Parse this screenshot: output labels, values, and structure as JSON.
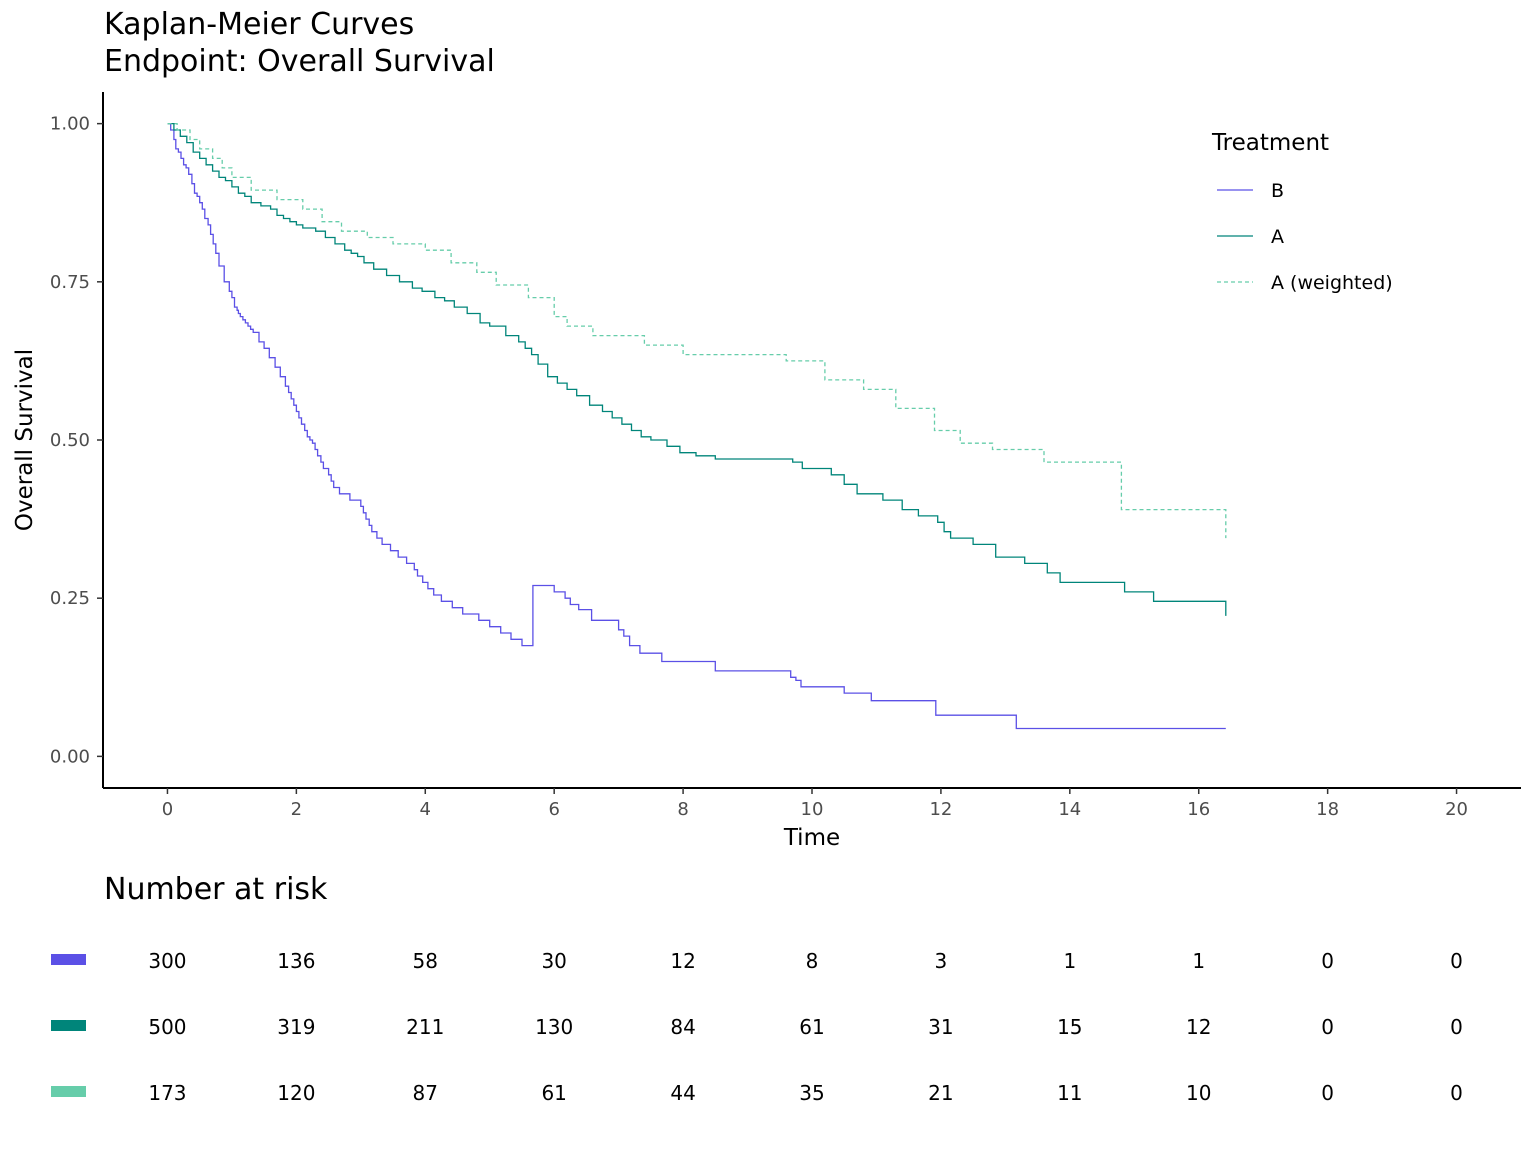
{
  "chart_data": {
    "type": "line",
    "title_lines": [
      "Kaplan-Meier Curves",
      "Endpoint: Overall Survival"
    ],
    "xlabel": "Time",
    "ylabel": "Overall Survival",
    "xlim": [
      -1,
      21
    ],
    "ylim": [
      -0.05,
      1.05
    ],
    "x_ticks": [
      0,
      2,
      4,
      6,
      8,
      10,
      12,
      14,
      16,
      18,
      20
    ],
    "x_tick_labels": [
      "0",
      "2",
      "4",
      "6",
      "8",
      "10",
      "12",
      "14",
      "16",
      "18",
      "20"
    ],
    "y_ticks": [
      0,
      0.25,
      0.5,
      0.75,
      1.0
    ],
    "y_tick_labels": [
      "0.00",
      "0.25",
      "0.50",
      "0.75",
      "1.00"
    ],
    "grid": false,
    "legend": {
      "title": "Treatment",
      "placement": "top-right",
      "entries": [
        "B",
        "A",
        "A (weighted)"
      ]
    },
    "series": [
      {
        "name": "B",
        "color": "#5b50e6",
        "dash": "solid",
        "x": [
          0,
          0.05,
          0.1,
          0.13,
          0.17,
          0.21,
          0.25,
          0.29,
          0.33,
          0.38,
          0.42,
          0.46,
          0.5,
          0.54,
          0.58,
          0.63,
          0.67,
          0.71,
          0.75,
          0.8,
          0.88,
          0.96,
          1.0,
          1.04,
          1.08,
          1.1,
          1.13,
          1.17,
          1.21,
          1.25,
          1.29,
          1.33,
          1.42,
          1.5,
          1.58,
          1.67,
          1.75,
          1.83,
          1.88,
          1.92,
          1.96,
          2.0,
          2.04,
          2.08,
          2.13,
          2.17,
          2.21,
          2.25,
          2.29,
          2.33,
          2.38,
          2.42,
          2.5,
          2.54,
          2.58,
          2.67,
          2.83,
          3.0,
          3.04,
          3.08,
          3.13,
          3.17,
          3.25,
          3.33,
          3.46,
          3.58,
          3.71,
          3.83,
          3.88,
          3.96,
          4.04,
          4.13,
          4.25,
          4.42,
          4.58,
          4.83,
          5.0,
          5.17,
          5.33,
          5.5,
          5.67,
          6.0,
          6.17,
          6.25,
          6.38,
          6.58,
          7.0,
          7.08,
          7.17,
          7.33,
          7.67,
          8.5,
          9.67,
          9.75,
          9.83,
          10.5,
          10.92,
          11.92,
          13.17,
          16.42
        ],
        "y": [
          1.0,
          0.99,
          0.975,
          0.96,
          0.955,
          0.945,
          0.935,
          0.93,
          0.92,
          0.905,
          0.89,
          0.885,
          0.875,
          0.865,
          0.85,
          0.84,
          0.825,
          0.81,
          0.795,
          0.775,
          0.75,
          0.735,
          0.725,
          0.71,
          0.705,
          0.7,
          0.695,
          0.69,
          0.685,
          0.68,
          0.675,
          0.67,
          0.655,
          0.645,
          0.63,
          0.615,
          0.6,
          0.585,
          0.575,
          0.565,
          0.555,
          0.545,
          0.535,
          0.525,
          0.515,
          0.505,
          0.5,
          0.495,
          0.485,
          0.475,
          0.465,
          0.455,
          0.445,
          0.435,
          0.425,
          0.415,
          0.405,
          0.395,
          0.385,
          0.375,
          0.365,
          0.355,
          0.345,
          0.335,
          0.325,
          0.315,
          0.305,
          0.295,
          0.285,
          0.275,
          0.265,
          0.255,
          0.245,
          0.235,
          0.225,
          0.215,
          0.205,
          0.195,
          0.185,
          0.175,
          0.27,
          0.26,
          0.25,
          0.24,
          0.232,
          0.215,
          0.2,
          0.19,
          0.175,
          0.163,
          0.15,
          0.135,
          0.125,
          0.12,
          0.11,
          0.1,
          0.088,
          0.065,
          0.044,
          0.044
        ]
      },
      {
        "name": "A",
        "color": "#00857a",
        "dash": "solid",
        "x": [
          0,
          0.1,
          0.2,
          0.3,
          0.4,
          0.5,
          0.6,
          0.7,
          0.8,
          0.9,
          1.0,
          1.1,
          1.2,
          1.3,
          1.45,
          1.6,
          1.7,
          1.8,
          1.9,
          2.0,
          2.1,
          2.3,
          2.45,
          2.6,
          2.75,
          2.85,
          2.95,
          3.05,
          3.2,
          3.4,
          3.6,
          3.8,
          3.95,
          4.15,
          4.3,
          4.45,
          4.65,
          4.85,
          5.0,
          5.25,
          5.45,
          5.55,
          5.65,
          5.75,
          5.9,
          6.05,
          6.2,
          6.35,
          6.55,
          6.75,
          6.9,
          7.05,
          7.2,
          7.35,
          7.5,
          7.75,
          7.95,
          8.2,
          8.5,
          9.7,
          9.85,
          10.3,
          10.5,
          10.7,
          11.1,
          11.4,
          11.65,
          11.95,
          12.05,
          12.15,
          12.5,
          12.85,
          13.3,
          13.65,
          13.85,
          14.85,
          15.3,
          16.42
        ],
        "y": [
          1.0,
          0.99,
          0.98,
          0.97,
          0.955,
          0.945,
          0.935,
          0.925,
          0.915,
          0.91,
          0.9,
          0.89,
          0.885,
          0.875,
          0.87,
          0.865,
          0.855,
          0.85,
          0.845,
          0.84,
          0.835,
          0.83,
          0.82,
          0.81,
          0.8,
          0.795,
          0.79,
          0.78,
          0.77,
          0.76,
          0.75,
          0.74,
          0.735,
          0.725,
          0.72,
          0.71,
          0.7,
          0.685,
          0.68,
          0.665,
          0.655,
          0.645,
          0.635,
          0.62,
          0.6,
          0.59,
          0.58,
          0.57,
          0.555,
          0.545,
          0.535,
          0.525,
          0.515,
          0.505,
          0.5,
          0.49,
          0.48,
          0.475,
          0.47,
          0.465,
          0.455,
          0.445,
          0.43,
          0.415,
          0.405,
          0.39,
          0.38,
          0.37,
          0.355,
          0.345,
          0.335,
          0.315,
          0.305,
          0.29,
          0.275,
          0.26,
          0.245,
          0.222
        ]
      },
      {
        "name": "A (weighted)",
        "color": "#66cdaa",
        "dash": "dashed",
        "x": [
          0,
          0.15,
          0.35,
          0.5,
          0.7,
          0.85,
          1.0,
          1.3,
          1.7,
          2.1,
          2.4,
          2.7,
          3.1,
          3.5,
          4.0,
          4.4,
          4.8,
          5.1,
          5.6,
          6.0,
          6.2,
          6.6,
          7.4,
          8.0,
          9.6,
          10.2,
          10.8,
          11.3,
          11.9,
          12.3,
          12.8,
          13.6,
          14.8,
          16.42
        ],
        "y": [
          1.0,
          0.99,
          0.975,
          0.96,
          0.945,
          0.93,
          0.915,
          0.895,
          0.88,
          0.865,
          0.845,
          0.83,
          0.82,
          0.81,
          0.8,
          0.78,
          0.765,
          0.745,
          0.725,
          0.695,
          0.68,
          0.665,
          0.65,
          0.635,
          0.625,
          0.595,
          0.58,
          0.55,
          0.515,
          0.495,
          0.485,
          0.465,
          0.39,
          0.345
        ]
      }
    ],
    "risk_table": {
      "title": "Number at risk",
      "times": [
        0,
        2,
        4,
        6,
        8,
        10,
        12,
        14,
        16,
        18,
        20
      ],
      "rows": [
        {
          "name": "B",
          "color": "#5b50e6",
          "values": [
            "300",
            "136",
            "58",
            "30",
            "12",
            "8",
            "3",
            "1",
            "1",
            "0",
            "0"
          ]
        },
        {
          "name": "A",
          "color": "#00857a",
          "values": [
            "500",
            "319",
            "211",
            "130",
            "84",
            "61",
            "31",
            "15",
            "12",
            "0",
            "0"
          ]
        },
        {
          "name": "A (weighted)",
          "color": "#66cdaa",
          "values": [
            "173",
            "120",
            "87",
            "61",
            "44",
            "35",
            "21",
            "11",
            "10",
            "0",
            "0"
          ]
        }
      ]
    }
  }
}
